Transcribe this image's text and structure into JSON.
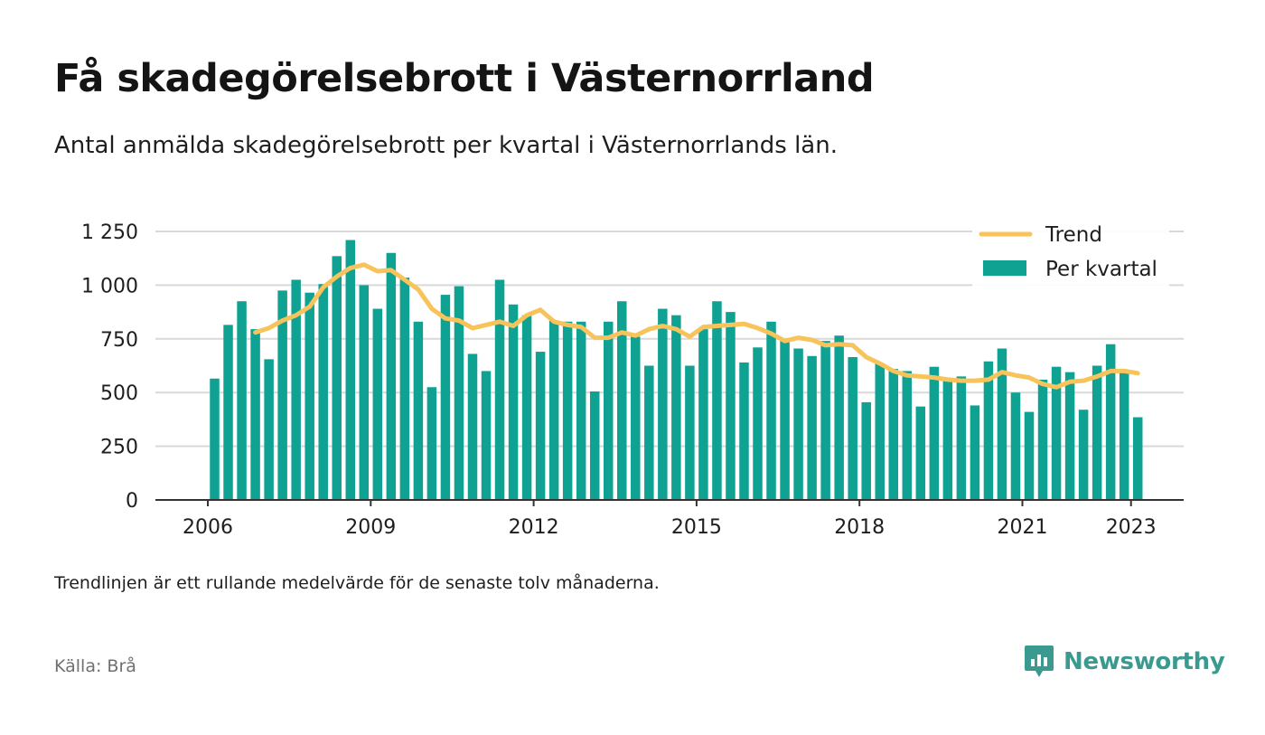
{
  "title": "Få skadegörelsebrott i Västernorrland",
  "subtitle": "Antal anmälda skadegörelsebrott per kvartal i Västernorrlands län.",
  "note": "Trendlinjen är ett rullande medelvärde för de senaste tolv månaderna.",
  "source": "Källa: Brå",
  "brand": "Newsworthy",
  "colors": {
    "bar": "#0fa293",
    "trend": "#f7c35a",
    "grid": "#d9d9d9",
    "axis": "#333333",
    "brand": "#3b9a8f"
  },
  "chart_data": {
    "type": "bar",
    "title": "",
    "xlabel": "",
    "ylabel": "",
    "ylim": [
      0,
      1250
    ],
    "yticks": [
      0,
      250,
      500,
      750,
      1000,
      1250
    ],
    "ytick_labels": [
      "0",
      "250",
      "500",
      "750",
      "1 000",
      "1 250"
    ],
    "xticks": [
      2006,
      2009,
      2012,
      2015,
      2018,
      2021,
      2023
    ],
    "grid": true,
    "legend_position": "top-right",
    "x_start": 2006,
    "quarters": [
      "2006 Q1",
      "2006 Q2",
      "2006 Q3",
      "2006 Q4",
      "2007 Q1",
      "2007 Q2",
      "2007 Q3",
      "2007 Q4",
      "2008 Q1",
      "2008 Q2",
      "2008 Q3",
      "2008 Q4",
      "2009 Q1",
      "2009 Q2",
      "2009 Q3",
      "2009 Q4",
      "2010 Q1",
      "2010 Q2",
      "2010 Q3",
      "2010 Q4",
      "2011 Q1",
      "2011 Q2",
      "2011 Q3",
      "2011 Q4",
      "2012 Q1",
      "2012 Q2",
      "2012 Q3",
      "2012 Q4",
      "2013 Q1",
      "2013 Q2",
      "2013 Q3",
      "2013 Q4",
      "2014 Q1",
      "2014 Q2",
      "2014 Q3",
      "2014 Q4",
      "2015 Q1",
      "2015 Q2",
      "2015 Q3",
      "2015 Q4",
      "2016 Q1",
      "2016 Q2",
      "2016 Q3",
      "2016 Q4",
      "2017 Q1",
      "2017 Q2",
      "2017 Q3",
      "2017 Q4",
      "2018 Q1",
      "2018 Q2",
      "2018 Q3",
      "2018 Q4",
      "2019 Q1",
      "2019 Q2",
      "2019 Q3",
      "2019 Q4",
      "2020 Q1",
      "2020 Q2",
      "2020 Q3",
      "2020 Q4",
      "2021 Q1",
      "2021 Q2",
      "2021 Q3",
      "2021 Q4",
      "2022 Q1",
      "2022 Q2",
      "2022 Q3",
      "2022 Q4",
      "2023 Q1"
    ],
    "series": [
      {
        "name": "Per kvartal",
        "type": "bar",
        "values": [
          565,
          815,
          925,
          795,
          655,
          975,
          1025,
          965,
          1005,
          1135,
          1210,
          1000,
          890,
          1150,
          1035,
          830,
          525,
          955,
          995,
          680,
          600,
          1025,
          910,
          860,
          690,
          835,
          830,
          830,
          505,
          830,
          925,
          760,
          625,
          890,
          860,
          625,
          795,
          925,
          875,
          640,
          710,
          830,
          745,
          705,
          670,
          740,
          765,
          665,
          455,
          635,
          610,
          600,
          435,
          620,
          555,
          575,
          440,
          645,
          705,
          500,
          410,
          560,
          620,
          595,
          420,
          625,
          725,
          595,
          385
        ]
      },
      {
        "name": "Trend",
        "type": "line",
        "values": [
          null,
          null,
          null,
          780,
          800,
          835,
          860,
          900,
          990,
          1040,
          1080,
          1095,
          1065,
          1070,
          1025,
          980,
          890,
          845,
          835,
          800,
          815,
          830,
          810,
          860,
          885,
          830,
          815,
          805,
          755,
          755,
          780,
          765,
          795,
          810,
          795,
          760,
          805,
          810,
          815,
          820,
          800,
          775,
          740,
          755,
          745,
          720,
          725,
          720,
          665,
          635,
          600,
          580,
          575,
          570,
          560,
          555,
          555,
          560,
          595,
          580,
          570,
          540,
          525,
          550,
          555,
          575,
          600,
          600,
          590
        ]
      }
    ]
  }
}
